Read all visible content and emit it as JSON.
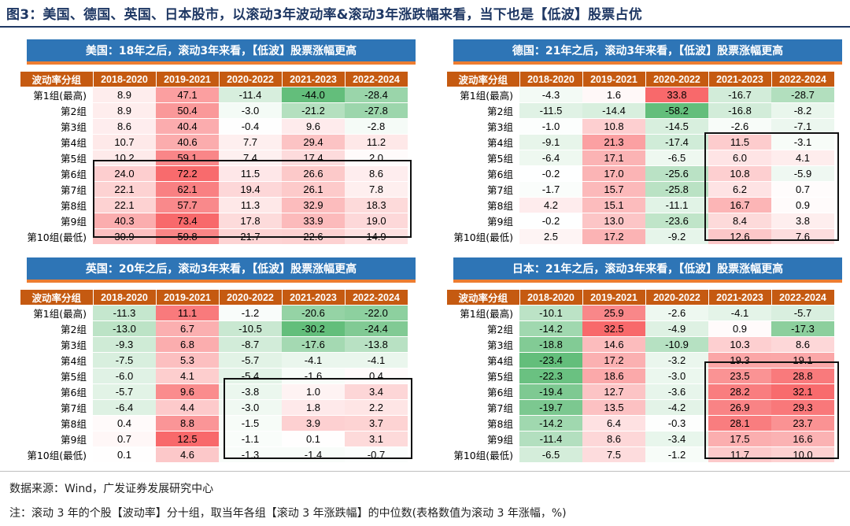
{
  "figure_title": "图3：美国、德国、英国、日本股市，以滚动3年波动率&滚动3年涨跌幅来看，当下也是【低波】股票占优",
  "columns": [
    "波动率分组",
    "2018-2020",
    "2019-2021",
    "2020-2022",
    "2021-2023",
    "2022-2024"
  ],
  "row_labels": [
    "第1组(最高)",
    "第2组",
    "第3组",
    "第4组",
    "第5组",
    "第6组",
    "第7组",
    "第8组",
    "第9组",
    "第10组(最低)"
  ],
  "panels": [
    {
      "title": "美国：18年之后，滚动3年来看，【低波】股票涨幅更高",
      "rows": [
        [
          "8.9",
          "47.1",
          "-11.4",
          "-44.0",
          "-28.4"
        ],
        [
          "8.9",
          "50.4",
          "-3.0",
          "-21.2",
          "-27.8"
        ],
        [
          "8.6",
          "40.4",
          "-0.4",
          "9.6",
          "-2.8"
        ],
        [
          "10.7",
          "40.6",
          "7.7",
          "29.4",
          "11.2"
        ],
        [
          "10.2",
          "59.1",
          "7.4",
          "17.4",
          "2.0"
        ],
        [
          "24.0",
          "72.2",
          "11.5",
          "26.6",
          "8.6"
        ],
        [
          "22.1",
          "62.1",
          "19.4",
          "26.1",
          "7.8"
        ],
        [
          "22.1",
          "57.7",
          "11.3",
          "32.9",
          "18.3"
        ],
        [
          "40.3",
          "73.4",
          "17.8",
          "33.9",
          "19.0"
        ],
        [
          "30.9",
          "59.8",
          "21.7",
          "22.6",
          "14.9"
        ]
      ]
    },
    {
      "title": "德国：21年之后，滚动3年来看，【低波】股票涨幅更高",
      "rows": [
        [
          "-4.3",
          "1.6",
          "33.8",
          "-16.7",
          "-28.7"
        ],
        [
          "-11.5",
          "-14.4",
          "-58.2",
          "-16.8",
          "-8.2"
        ],
        [
          "-1.0",
          "10.8",
          "-14.5",
          "-2.6",
          "-7.1"
        ],
        [
          "-9.1",
          "21.3",
          "-17.4",
          "11.5",
          "-3.1"
        ],
        [
          "-6.4",
          "17.1",
          "-6.5",
          "6.0",
          "4.1"
        ],
        [
          "-0.2",
          "17.0",
          "-25.6",
          "10.8",
          "-5.9"
        ],
        [
          "-1.7",
          "15.7",
          "-25.8",
          "6.2",
          "0.7"
        ],
        [
          "4.2",
          "15.1",
          "-11.1",
          "16.7",
          "0.9"
        ],
        [
          "-0.2",
          "13.0",
          "-23.6",
          "8.4",
          "3.8"
        ],
        [
          "2.5",
          "17.2",
          "-9.2",
          "12.6",
          "7.6"
        ]
      ]
    },
    {
      "title": "英国：20年之后，滚动3年来看，【低波】股票涨幅更高",
      "rows": [
        [
          "-11.3",
          "11.1",
          "-1.2",
          "-20.6",
          "-22.0"
        ],
        [
          "-13.0",
          "6.7",
          "-10.5",
          "-30.2",
          "-24.4"
        ],
        [
          "-9.3",
          "6.8",
          "-8.7",
          "-17.6",
          "-13.8"
        ],
        [
          "-7.5",
          "5.3",
          "-5.7",
          "-4.1",
          "-4.1"
        ],
        [
          "-6.0",
          "4.1",
          "-5.4",
          "-1.6",
          "0.4"
        ],
        [
          "-5.7",
          "9.6",
          "-3.8",
          "1.0",
          "3.4"
        ],
        [
          "-6.4",
          "4.4",
          "-3.0",
          "1.8",
          "2.2"
        ],
        [
          "0.4",
          "8.8",
          "-1.5",
          "3.9",
          "3.7"
        ],
        [
          "0.7",
          "12.5",
          "-1.1",
          "0.1",
          "3.1"
        ],
        [
          "0.1",
          "4.6",
          "-1.3",
          "-1.4",
          "-0.7"
        ]
      ]
    },
    {
      "title": "日本：21年之后，滚动3年来看，【低波】股票涨幅更高",
      "rows": [
        [
          "-10.1",
          "25.9",
          "-2.6",
          "-4.1",
          "-5.7"
        ],
        [
          "-14.2",
          "32.5",
          "-4.9",
          "0.9",
          "-17.3"
        ],
        [
          "-18.8",
          "14.6",
          "-10.9",
          "10.3",
          "8.6"
        ],
        [
          "-23.4",
          "17.2",
          "-3.2",
          "19.3",
          "19.1"
        ],
        [
          "-22.3",
          "18.6",
          "-3.0",
          "23.5",
          "28.8"
        ],
        [
          "-19.4",
          "12.7",
          "-3.6",
          "28.2",
          "32.1"
        ],
        [
          "-19.7",
          "13.5",
          "-4.2",
          "26.9",
          "29.3"
        ],
        [
          "-14.2",
          "6.4",
          "-0.3",
          "28.1",
          "23.7"
        ],
        [
          "-11.4",
          "8.6",
          "-3.4",
          "17.5",
          "16.6"
        ],
        [
          "-6.5",
          "7.5",
          "-1.2",
          "11.7",
          "10.0"
        ]
      ]
    }
  ],
  "colors": {
    "positive": "#f8696b",
    "negative": "#63be7b",
    "neutral": "#ffffff",
    "header": "#c55a11",
    "title_bar": "#2e75b6",
    "title_underline": "#ed7d31"
  },
  "footnote_source": "数据来源：Wind，广发证券发展研究中心",
  "footnote_note": "注：滚动 3 年的个股【波动率】分十组，取当年各组【滚动 3 年涨跌幅】的中位数(表格数值为滚动 3 年涨幅，%)"
}
